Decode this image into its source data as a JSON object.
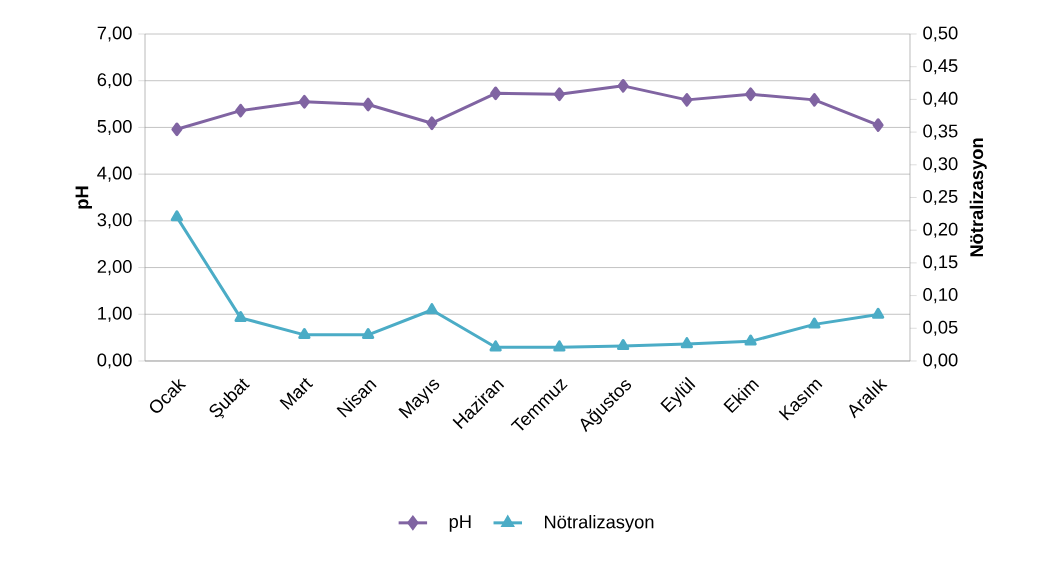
{
  "chart_data": {
    "type": "line",
    "ylabel": "pH",
    "y2label": "Nötralizasyon",
    "categories": [
      "Ocak",
      "Şubat",
      "Mart",
      "Nisan",
      "Mayıs",
      "Haziran",
      "Temmuz",
      "Ağustos",
      "Eylül",
      "Ekim",
      "Kasım",
      "Aralık"
    ],
    "series": [
      {
        "name": "pH",
        "color": "#8064a2",
        "marker": "diamond",
        "axis": "y",
        "values": [
          4.96,
          5.36,
          5.55,
          5.49,
          5.09,
          5.73,
          5.71,
          5.89,
          5.59,
          5.71,
          5.59,
          5.05
        ]
      },
      {
        "name": "Nötralizasyon",
        "color": "#4bacc6",
        "marker": "triangle",
        "axis": "y2",
        "values": [
          0.22,
          0.066,
          0.04,
          0.04,
          0.078,
          0.021,
          0.021,
          0.023,
          0.026,
          0.03,
          0.056,
          0.071
        ]
      }
    ],
    "ylim": [
      0,
      7
    ],
    "yticks": [
      {
        "value": 0,
        "label": "0,00"
      },
      {
        "value": 1,
        "label": "1,00"
      },
      {
        "value": 2,
        "label": "2,00"
      },
      {
        "value": 3,
        "label": "3,00"
      },
      {
        "value": 4,
        "label": "4,00"
      },
      {
        "value": 5,
        "label": "5,00"
      },
      {
        "value": 6,
        "label": "6,00"
      },
      {
        "value": 7,
        "label": "7,00"
      }
    ],
    "y2lim": [
      0,
      0.5
    ],
    "y2ticks": [
      {
        "value": 0,
        "label": "0,00"
      },
      {
        "value": 0.05,
        "label": "0,05"
      },
      {
        "value": 0.1,
        "label": "0,10"
      },
      {
        "value": 0.15,
        "label": "0,15"
      },
      {
        "value": 0.2,
        "label": "0,20"
      },
      {
        "value": 0.25,
        "label": "0,25"
      },
      {
        "value": 0.3,
        "label": "0,30"
      },
      {
        "value": 0.35,
        "label": "0,35"
      },
      {
        "value": 0.4,
        "label": "0,40"
      },
      {
        "value": 0.45,
        "label": "0,45"
      },
      {
        "value": 0.5,
        "label": "0,50"
      }
    ],
    "grid": "y",
    "legend": "bottom",
    "line_style": "solid"
  }
}
